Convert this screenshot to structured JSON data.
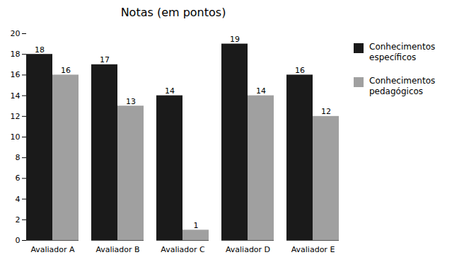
{
  "chart_data": {
    "type": "bar",
    "title": "Notas (em pontos)",
    "categories": [
      "Avaliador A",
      "Avaliador B",
      "Avaliador C",
      "Avaliador D",
      "Avaliador E"
    ],
    "series": [
      {
        "name": "Conhecimentos\nespecíficos",
        "values": [
          18,
          17,
          14,
          19,
          16
        ],
        "color": "#1a1a1a"
      },
      {
        "name": "Conhecimentos\npedagógicos",
        "values": [
          16,
          13,
          1,
          14,
          12
        ],
        "color": "#a0a0a0"
      }
    ],
    "ylim": [
      0,
      20
    ],
    "yticks": [
      0,
      2,
      4,
      6,
      8,
      10,
      12,
      14,
      16,
      18,
      20
    ],
    "grid": false,
    "legend": "right",
    "data_labels": true
  }
}
